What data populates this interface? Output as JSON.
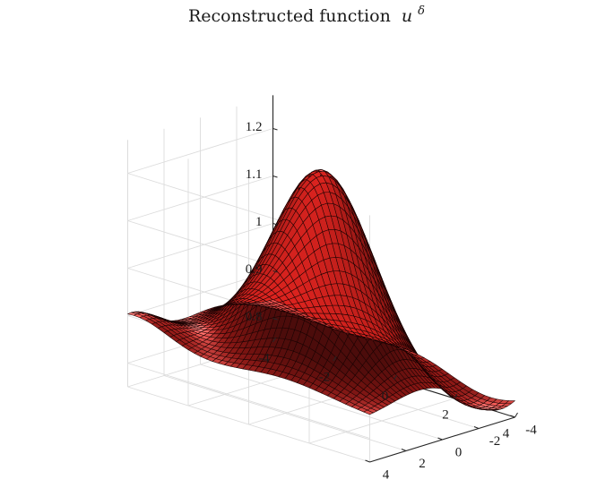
{
  "chart_data": {
    "type": "surface",
    "title": "Reconstructed function",
    "title_symbol": "u",
    "title_superscript": "δ",
    "xlabel": "",
    "ylabel": "",
    "zlabel": "",
    "xlim": [
      -4,
      4
    ],
    "ylim": [
      -4,
      4
    ],
    "zlim": [
      0.75,
      1.27
    ],
    "x_ticks": [
      -4,
      -2,
      0,
      2,
      4
    ],
    "x_tick_labels": [
      "-4",
      "-2",
      "0",
      "2",
      "4"
    ],
    "y_ticks": [
      -4,
      -2,
      0,
      2,
      4
    ],
    "y_tick_labels": [
      "-4",
      "-2",
      "0",
      "2",
      "4"
    ],
    "z_ticks": [
      0.8,
      0.9,
      1.0,
      1.1,
      1.2
    ],
    "z_tick_labels": [
      "0.8",
      "0.9",
      "1",
      "1.1",
      "1.2"
    ],
    "grid": true,
    "box": "back planes",
    "colormap": "uniform red with lighting",
    "surface_color": "#c8201c",
    "edge_color": "#1a0303",
    "mesh": {
      "nx": 41,
      "ny": 41
    },
    "corner_values": {
      "x-4_y4": 0.89,
      "x4_y4": 0.82,
      "x-4_y-4": 0.75,
      "x4_y-4": 0.75
    },
    "peak": {
      "x": -0.5,
      "y": 0.5,
      "z": 1.24
    },
    "ridge": "diagonal ridge from front-left (z≈0.78) through centre peak (z≈1.24) to right side (z≈1.05)"
  }
}
